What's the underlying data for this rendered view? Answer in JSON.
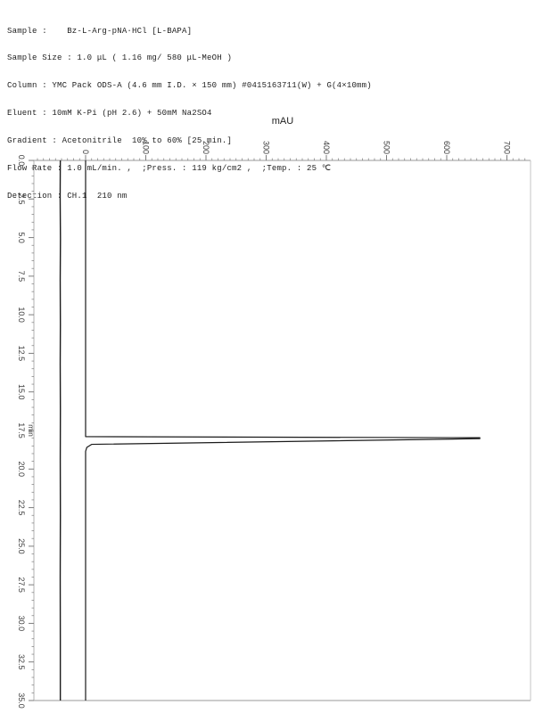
{
  "header": {
    "lines": [
      "Sample :    Bz-L-Arg-pNA·HCl [L-BAPA]",
      "Sample Size : 1.0 μL ( 1.16 mg/ 580 μL-MeOH )",
      "Column : YMC Pack ODS-A (4.6 mm I.D. × 150 mm) #0415163711(W) + G(4×10mm)",
      "Eluent : 10mM K-Pi (pH 2.6) + 50mM Na2SO4",
      "Gradient : Acetonitrile  10% to 60% [25 min.]",
      "Flow Rate : 1.0 mL/min. ,  ;Press. : 119 kg/cm2 ,  ;Temp. : 25 ℃",
      "Detection : CH.1  210 nm"
    ]
  },
  "chart_data": {
    "type": "line",
    "title": "mAU",
    "orientation": "rotated-90: time axis runs downward, absorbance axis runs rightward",
    "grid": false,
    "colors": {
      "frame": "#9a9a9a",
      "tick": "#7d7d7d",
      "label": "#3c3c3c",
      "trace": "#1a1a1a",
      "background": "#ffffff"
    },
    "signal_axis": {
      "label": "mAU",
      "tick_values": [
        0,
        100,
        200,
        300,
        400,
        500,
        600,
        700
      ],
      "tick_labels": [
        "0",
        "100",
        "200",
        "300",
        "400",
        "500",
        "600",
        "700"
      ],
      "minor_step": 10,
      "display_range": [
        -85,
        739
      ]
    },
    "time_axis": {
      "label": "min",
      "tick_values": [
        0,
        2.5,
        5,
        7.5,
        10,
        12.5,
        15,
        17.5,
        20,
        22.5,
        25,
        27.5,
        30,
        32.5,
        35
      ],
      "tick_labels": [
        "0.0",
        "2.5",
        "5.0",
        "7.5",
        "10.0",
        "12.5",
        "15.0",
        "17.5",
        "20.0",
        "22.5",
        "25.0",
        "27.5",
        "30.0",
        "32.5",
        "35.0"
      ],
      "minor_step": 0.5,
      "range": [
        0,
        35
      ]
    },
    "series": [
      {
        "name": "detector-signal",
        "width": 1.2,
        "peak": {
          "retention_min": 18.0,
          "height_mAU": 655
        },
        "points_mau_min": [
          [
            0,
            0
          ],
          [
            0,
            17.9
          ],
          [
            655,
            17.97
          ],
          [
            655,
            18.03
          ],
          [
            10,
            18.4
          ],
          [
            2,
            18.6
          ],
          [
            0,
            18.85
          ],
          [
            0,
            35
          ]
        ]
      },
      {
        "name": "secondary-trace",
        "width": 1.4,
        "peak": null,
        "points_mau_min": [
          [
            -42,
            0
          ],
          [
            -42.3,
            2.3
          ],
          [
            -41.8,
            5.1
          ],
          [
            -42.2,
            7.8
          ],
          [
            -41.9,
            10.6
          ],
          [
            -42.2,
            13.2
          ],
          [
            -41.9,
            16.1
          ],
          [
            -42.1,
            19.4
          ],
          [
            -41.9,
            23.0
          ],
          [
            -42.2,
            27.0
          ],
          [
            -42,
            31.0
          ],
          [
            -42,
            35
          ]
        ]
      }
    ]
  }
}
